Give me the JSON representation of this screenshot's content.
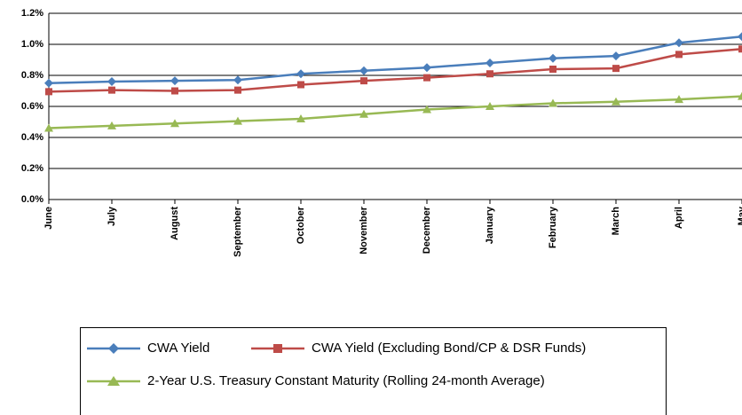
{
  "chart_data": {
    "type": "line",
    "categories": [
      "June",
      "July",
      "August",
      "September",
      "October",
      "November",
      "December",
      "January",
      "February",
      "March",
      "April",
      "May"
    ],
    "series": [
      {
        "name": "CWA Yield",
        "color": "#4a7ebb",
        "marker": "diamond",
        "values": [
          0.75,
          0.76,
          0.765,
          0.77,
          0.81,
          0.83,
          0.85,
          0.88,
          0.91,
          0.925,
          1.01,
          1.05
        ]
      },
      {
        "name": "CWA Yield (Excluding Bond/CP & DSR Funds)",
        "color": "#be4b48",
        "marker": "square",
        "values": [
          0.695,
          0.705,
          0.7,
          0.705,
          0.74,
          0.765,
          0.785,
          0.81,
          0.84,
          0.845,
          0.935,
          0.97
        ]
      },
      {
        "name": "2-Year U.S. Treasury Constant Maturity (Rolling 24-month Average)",
        "color": "#98b954",
        "marker": "triangle",
        "values": [
          0.46,
          0.475,
          0.49,
          0.505,
          0.52,
          0.55,
          0.58,
          0.6,
          0.62,
          0.63,
          0.645,
          0.665
        ]
      }
    ],
    "ylim": [
      0,
      1.2
    ],
    "yticks": [
      {
        "value": 0,
        "label": "0.0%"
      },
      {
        "value": 0.2,
        "label": "0.2%"
      },
      {
        "value": 0.4,
        "label": "0.4%"
      },
      {
        "value": 0.6,
        "label": "0.6%"
      },
      {
        "value": 0.8,
        "label": "0.8%"
      },
      {
        "value": 1.0,
        "label": "1.0%"
      },
      {
        "value": 1.2,
        "label": "1.2%"
      }
    ],
    "grid": true
  }
}
